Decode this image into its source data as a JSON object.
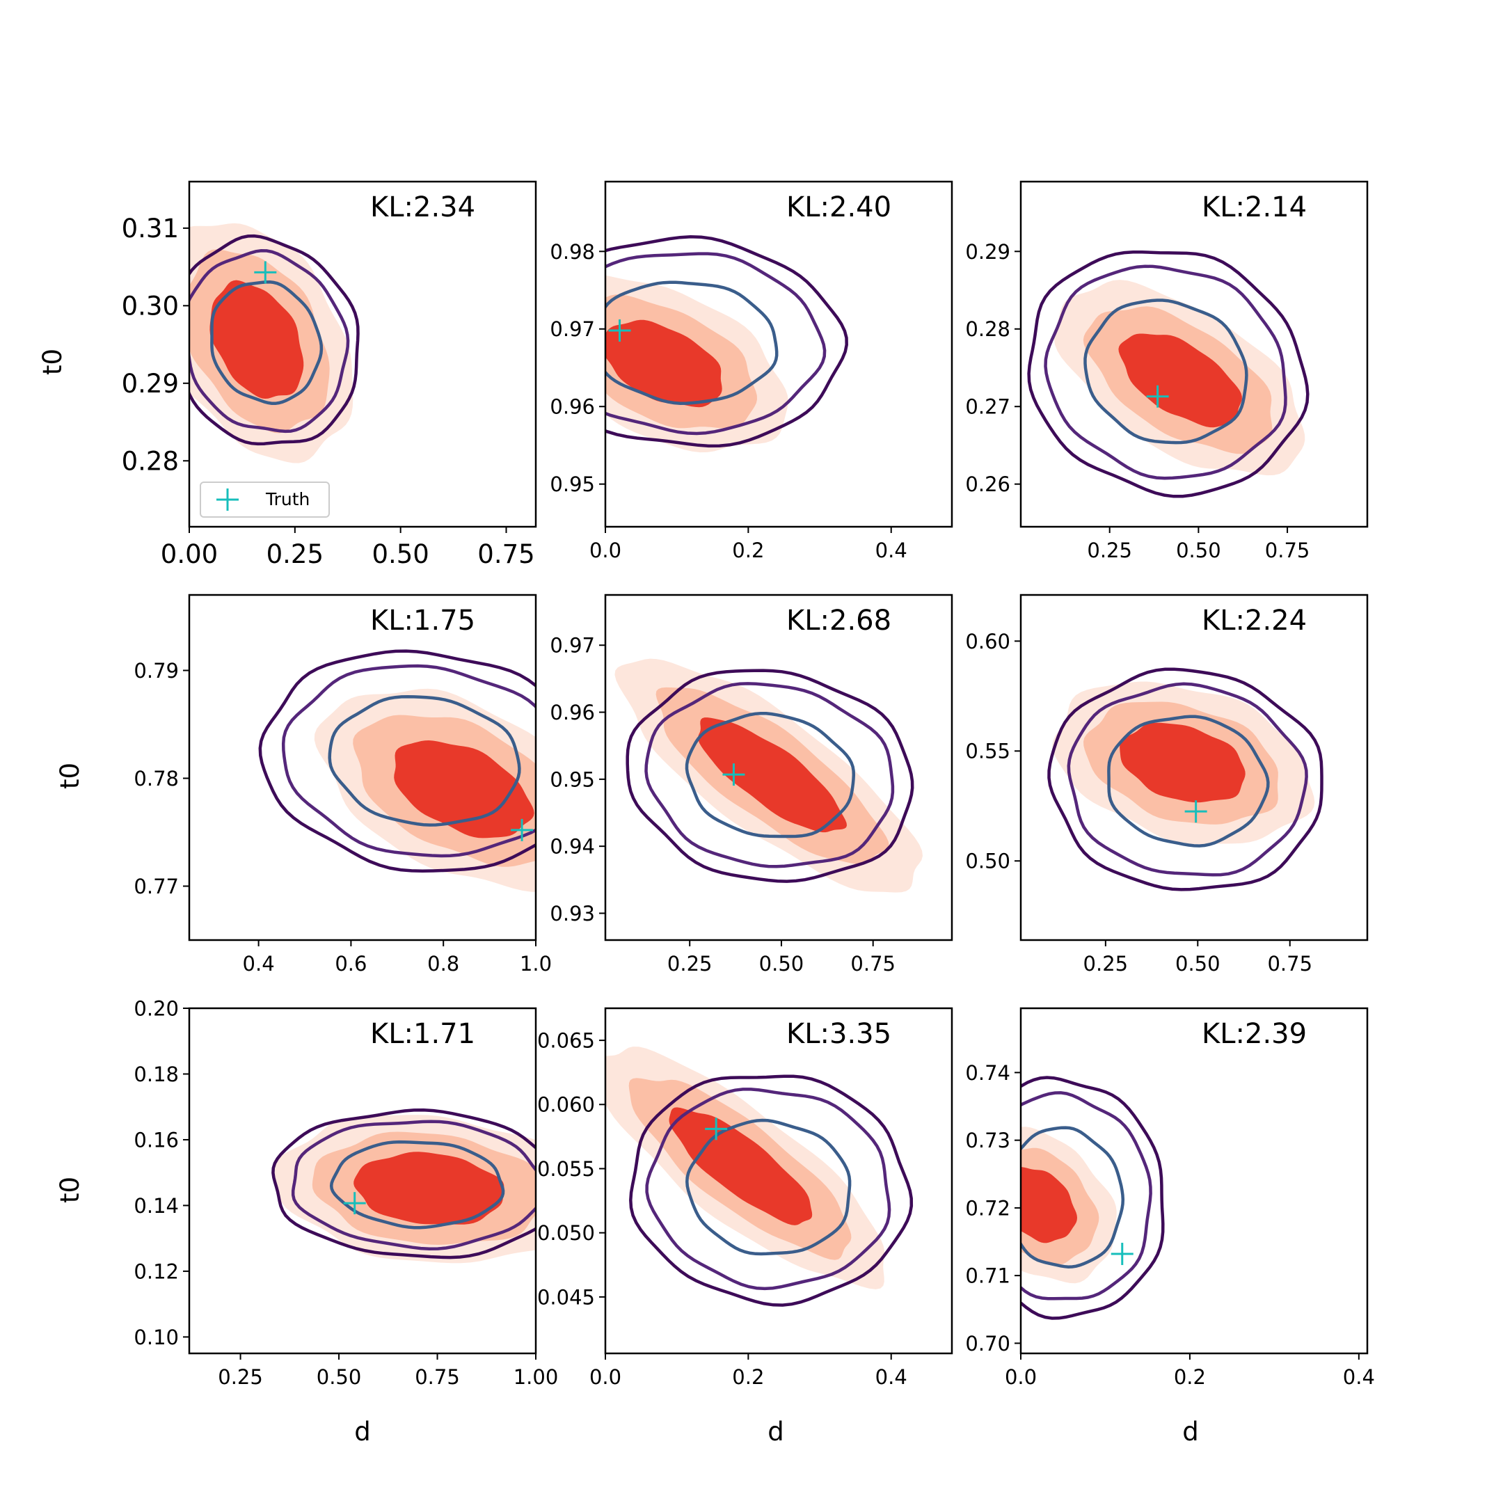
{
  "figure": {
    "xlabel": "d",
    "ylabel": "t0",
    "legend_label": "Truth",
    "colors": {
      "fill_outer": "#fde6dc",
      "fill_mid": "#fbbfa6",
      "fill_core": "#e8392a",
      "contour_outer": "#3d0b58",
      "contour_mid": "#54267a",
      "contour_inner": "#3a5d8b",
      "truth": "#17bebb",
      "axis": "#000000"
    }
  },
  "chart_data": [
    {
      "type": "contour",
      "annotation": "KL:2.34",
      "xlim": [
        0.0,
        0.82
      ],
      "ylim": [
        0.2715,
        0.316
      ],
      "xticks": [
        "0.00",
        "0.25",
        "0.50",
        "0.75"
      ],
      "xtick_values": [
        0.0,
        0.25,
        0.5,
        0.75
      ],
      "yticks": [
        "0.28",
        "0.29",
        "0.30",
        "0.31"
      ],
      "ytick_values": [
        0.28,
        0.29,
        0.3,
        0.31
      ],
      "large_ticks": true,
      "legend": true,
      "truth": [
        0.18,
        0.3043
      ],
      "samples_center": [
        0.16,
        0.2955
      ],
      "samples_spread": [
        0.11,
        0.0075
      ],
      "samples_corr": -0.35,
      "model_center": [
        0.18,
        0.2953
      ],
      "model_spread": [
        0.12,
        0.0072
      ],
      "model_corr": -0.1
    },
    {
      "type": "contour",
      "annotation": "KL:2.40",
      "xlim": [
        0.0,
        0.485
      ],
      "ylim": [
        0.9445,
        0.989
      ],
      "xticks": [
        "0.0",
        "0.2",
        "0.4"
      ],
      "xtick_values": [
        0.0,
        0.2,
        0.4
      ],
      "yticks": [
        "0.95",
        "0.96",
        "0.97",
        "0.98"
      ],
      "ytick_values": [
        0.95,
        0.96,
        0.97,
        0.98
      ],
      "large_ticks": false,
      "legend": false,
      "truth": [
        0.02,
        0.9698
      ],
      "samples_center": [
        0.08,
        0.9655
      ],
      "samples_spread": [
        0.085,
        0.0055
      ],
      "samples_corr": -0.45,
      "model_center": [
        0.11,
        0.9683
      ],
      "model_spread": [
        0.12,
        0.0072
      ],
      "model_corr": -0.05
    },
    {
      "type": "contour",
      "annotation": "KL:2.14",
      "xlim": [
        0.0,
        0.975
      ],
      "ylim": [
        0.2545,
        0.299
      ],
      "xticks": [
        "0.25",
        "0.50",
        "0.75"
      ],
      "xtick_values": [
        0.25,
        0.5,
        0.75
      ],
      "yticks": [
        "0.26",
        "0.27",
        "0.28",
        "0.29"
      ],
      "ytick_values": [
        0.26,
        0.27,
        0.28,
        0.29
      ],
      "large_ticks": false,
      "legend": false,
      "truth": [
        0.385,
        0.2713
      ],
      "samples_center": [
        0.45,
        0.2735
      ],
      "samples_spread": [
        0.17,
        0.006
      ],
      "samples_corr": -0.55,
      "model_center": [
        0.41,
        0.2745
      ],
      "model_spread": [
        0.21,
        0.0085
      ],
      "model_corr": -0.1
    },
    {
      "type": "contour",
      "annotation": "KL:1.75",
      "xlim": [
        0.25,
        1.0
      ],
      "ylim": [
        0.765,
        0.797
      ],
      "xticks": [
        "0.4",
        "0.6",
        "0.8",
        "1.0"
      ],
      "xtick_values": [
        0.4,
        0.6,
        0.8,
        1.0
      ],
      "yticks": [
        "0.77",
        "0.78",
        "0.79"
      ],
      "ytick_values": [
        0.77,
        0.78,
        0.79
      ],
      "large_ticks": false,
      "legend": false,
      "truth": [
        0.97,
        0.7752
      ],
      "samples_center": [
        0.84,
        0.779
      ],
      "samples_spread": [
        0.15,
        0.0045
      ],
      "samples_corr": -0.45,
      "model_center": [
        0.76,
        0.7816
      ],
      "model_spread": [
        0.19,
        0.0055
      ],
      "model_corr": -0.1
    },
    {
      "type": "contour",
      "annotation": "KL:2.68",
      "xlim": [
        0.02,
        0.965
      ],
      "ylim": [
        0.926,
        0.9775
      ],
      "xticks": [
        "0.25",
        "0.50",
        "0.75"
      ],
      "xtick_values": [
        0.25,
        0.5,
        0.75
      ],
      "yticks": [
        "0.93",
        "0.94",
        "0.95",
        "0.96",
        "0.97"
      ],
      "ytick_values": [
        0.93,
        0.94,
        0.95,
        0.96,
        0.97
      ],
      "large_ticks": false,
      "legend": false,
      "truth": [
        0.37,
        0.9507
      ],
      "samples_center": [
        0.47,
        0.9505
      ],
      "samples_spread": [
        0.2,
        0.0085
      ],
      "samples_corr": -0.8,
      "model_center": [
        0.47,
        0.9505
      ],
      "model_spread": [
        0.21,
        0.0085
      ],
      "model_corr": -0.1
    },
    {
      "type": "contour",
      "annotation": "KL:2.24",
      "xlim": [
        0.02,
        0.96
      ],
      "ylim": [
        0.464,
        0.621
      ],
      "xticks": [
        "0.25",
        "0.50",
        "0.75"
      ],
      "xtick_values": [
        0.25,
        0.5,
        0.75
      ],
      "yticks": [
        "0.50",
        "0.55",
        "0.60"
      ],
      "ytick_values": [
        0.5,
        0.55,
        0.6
      ],
      "large_ticks": false,
      "legend": false,
      "truth": [
        0.495,
        0.5225
      ],
      "samples_center": [
        0.46,
        0.5445
      ],
      "samples_spread": [
        0.17,
        0.018
      ],
      "samples_corr": -0.3,
      "model_center": [
        0.47,
        0.5365
      ],
      "model_spread": [
        0.2,
        0.027
      ],
      "model_corr": -0.05
    },
    {
      "type": "contour",
      "annotation": "KL:1.71",
      "xlim": [
        0.12,
        1.0
      ],
      "ylim": [
        0.095,
        0.2
      ],
      "xticks": [
        "0.25",
        "0.50",
        "0.75",
        "1.00"
      ],
      "xtick_values": [
        0.25,
        0.5,
        0.75,
        1.0
      ],
      "yticks": [
        "0.10",
        "0.12",
        "0.14",
        "0.16",
        "0.18",
        "0.20"
      ],
      "ytick_values": [
        0.1,
        0.12,
        0.14,
        0.16,
        0.18,
        0.2
      ],
      "large_ticks": false,
      "legend": false,
      "truth": [
        0.54,
        0.1407
      ],
      "samples_center": [
        0.73,
        0.145
      ],
      "samples_spread": [
        0.19,
        0.011
      ],
      "samples_corr": -0.15,
      "model_center": [
        0.7,
        0.1465
      ],
      "model_spread": [
        0.2,
        0.012
      ],
      "model_corr": -0.05
    },
    {
      "type": "contour",
      "annotation": "KL:3.35",
      "xlim": [
        0.0,
        0.485
      ],
      "ylim": [
        0.0406,
        0.0675
      ],
      "xticks": [
        "0.0",
        "0.2",
        "0.4"
      ],
      "xtick_values": [
        0.0,
        0.2,
        0.4
      ],
      "yticks": [
        "0.045",
        "0.050",
        "0.055",
        "0.060",
        "0.065"
      ],
      "ytick_values": [
        0.045,
        0.05,
        0.055,
        0.06,
        0.065
      ],
      "large_ticks": false,
      "legend": false,
      "truth": [
        0.155,
        0.0581
      ],
      "samples_center": [
        0.19,
        0.0552
      ],
      "samples_spread": [
        0.1,
        0.0045
      ],
      "samples_corr": -0.82,
      "model_center": [
        0.23,
        0.0535
      ],
      "model_spread": [
        0.105,
        0.0048
      ],
      "model_corr": -0.05
    },
    {
      "type": "contour",
      "annotation": "KL:2.39",
      "xlim": [
        0.0,
        0.41
      ],
      "ylim": [
        0.6985,
        0.7495
      ],
      "xticks": [
        "0.0",
        "0.2",
        "0.4"
      ],
      "xtick_values": [
        0.0,
        0.2,
        0.4
      ],
      "yticks": [
        "0.70",
        "0.71",
        "0.72",
        "0.73",
        "0.74"
      ],
      "ytick_values": [
        0.7,
        0.71,
        0.72,
        0.73,
        0.74
      ],
      "large_ticks": false,
      "legend": false,
      "truth": [
        0.12,
        0.7132
      ],
      "samples_center": [
        0.02,
        0.7205
      ],
      "samples_spread": [
        0.045,
        0.0055
      ],
      "samples_corr": -0.3,
      "model_center": [
        0.05,
        0.7215
      ],
      "model_spread": [
        0.065,
        0.0095
      ],
      "model_corr": -0.05
    }
  ]
}
